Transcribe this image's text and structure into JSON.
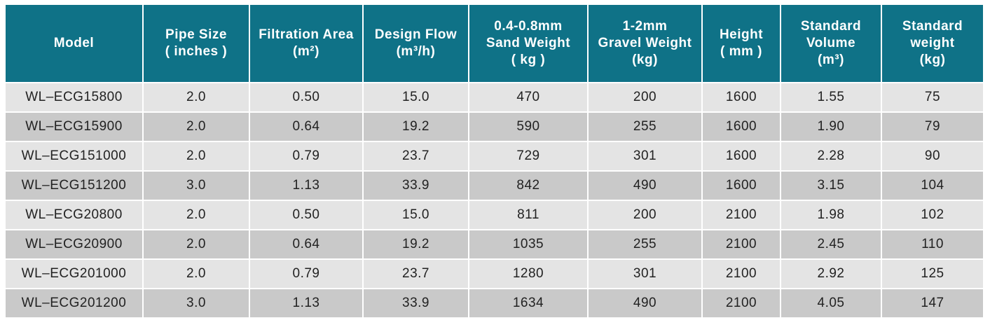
{
  "table": {
    "header": [
      [
        "Model"
      ],
      [
        "Pipe Size",
        "( inches )"
      ],
      [
        "Filtration Area",
        "(m²)"
      ],
      [
        "Design Flow",
        "(m³/h)"
      ],
      [
        "0.4-0.8mm",
        "Sand Weight",
        "( kg )"
      ],
      [
        "1-2mm",
        "Gravel Weight",
        "(kg)"
      ],
      [
        "Height",
        "( mm )"
      ],
      [
        "Standard",
        "Volume",
        "(m³)"
      ],
      [
        "Standard",
        "weight",
        "(kg)"
      ]
    ],
    "rows": [
      [
        "WL–ECG15800",
        "2.0",
        "0.50",
        "15.0",
        "470",
        "200",
        "1600",
        "1.55",
        "75"
      ],
      [
        "WL–ECG15900",
        "2.0",
        "0.64",
        "19.2",
        "590",
        "255",
        "1600",
        "1.90",
        "79"
      ],
      [
        "WL–ECG151000",
        "2.0",
        "0.79",
        "23.7",
        "729",
        "301",
        "1600",
        "2.28",
        "90"
      ],
      [
        "WL–ECG151200",
        "3.0",
        "1.13",
        "33.9",
        "842",
        "490",
        "1600",
        "3.15",
        "104"
      ],
      [
        "WL–ECG20800",
        "2.0",
        "0.50",
        "15.0",
        "811",
        "200",
        "2100",
        "1.98",
        "102"
      ],
      [
        "WL–ECG20900",
        "2.0",
        "0.64",
        "19.2",
        "1035",
        "255",
        "2100",
        "2.45",
        "110"
      ],
      [
        "WL–ECG201000",
        "2.0",
        "0.79",
        "23.7",
        "1280",
        "301",
        "2100",
        "2.92",
        "125"
      ],
      [
        "WL–ECG201200",
        "3.0",
        "1.13",
        "33.9",
        "1634",
        "490",
        "2100",
        "4.05",
        "147"
      ]
    ]
  }
}
